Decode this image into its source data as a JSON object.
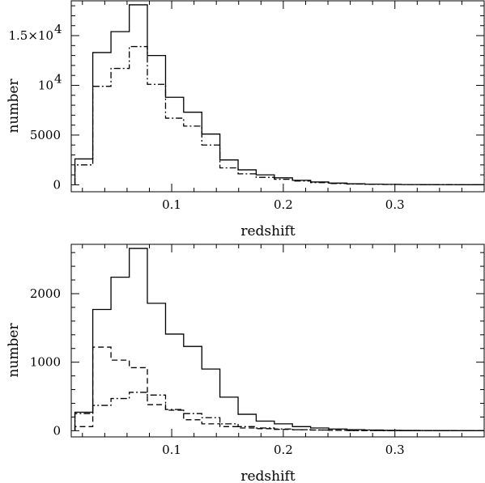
{
  "chart_data": [
    {
      "type": "histogram",
      "xlabel": "redshift",
      "ylabel": "number",
      "xlim": [
        0.01,
        0.38
      ],
      "ylim": [
        -700,
        18500
      ],
      "xticks": [
        {
          "v": 0.1,
          "label": "0.1"
        },
        {
          "v": 0.2,
          "label": "0.2"
        },
        {
          "v": 0.3,
          "label": "0.3"
        }
      ],
      "yticks": [
        {
          "v": 0,
          "label": "0",
          "exp": ""
        },
        {
          "v": 5000,
          "label": "5000",
          "exp": ""
        },
        {
          "v": 10000,
          "label": "10",
          "exp": "4"
        },
        {
          "v": 15000,
          "label": "1.5×10",
          "exp": "4"
        }
      ],
      "bin_edges": [
        0.0133,
        0.0293,
        0.0456,
        0.062,
        0.0782,
        0.0945,
        0.1107,
        0.127,
        0.1432,
        0.1595,
        0.1757,
        0.192,
        0.2082,
        0.2245,
        0.2407,
        0.257,
        0.2732,
        0.2895,
        0.3057,
        0.322,
        0.3382,
        0.3545,
        0.38
      ],
      "series": [
        {
          "style": "solid",
          "values": [
            2600,
            13300,
            15400,
            18100,
            13000,
            8800,
            7300,
            5100,
            2500,
            1500,
            1000,
            700,
            450,
            280,
            170,
            100,
            60,
            40,
            25,
            15,
            10,
            5
          ]
        },
        {
          "style": "dashdot",
          "values": [
            2000,
            9900,
            11700,
            13900,
            10100,
            6700,
            5900,
            4000,
            1700,
            1100,
            750,
            550,
            380,
            220,
            130,
            80,
            50,
            30,
            20,
            12,
            8,
            4
          ]
        }
      ]
    },
    {
      "type": "histogram",
      "xlabel": "redshift",
      "ylabel": "number",
      "xlim": [
        0.01,
        0.38
      ],
      "ylim": [
        -90,
        2720
      ],
      "xticks": [
        {
          "v": 0.1,
          "label": "0.1"
        },
        {
          "v": 0.2,
          "label": "0.2"
        },
        {
          "v": 0.3,
          "label": "0.3"
        }
      ],
      "yticks": [
        {
          "v": 0,
          "label": "0",
          "exp": ""
        },
        {
          "v": 1000,
          "label": "1000",
          "exp": ""
        },
        {
          "v": 2000,
          "label": "2000",
          "exp": ""
        }
      ],
      "bin_edges": [
        0.0133,
        0.0293,
        0.0456,
        0.062,
        0.0782,
        0.0945,
        0.1107,
        0.127,
        0.1432,
        0.1595,
        0.1757,
        0.192,
        0.2082,
        0.2245,
        0.2407,
        0.257,
        0.2732,
        0.2895,
        0.3057,
        0.322,
        0.3382,
        0.3545,
        0.38
      ],
      "series": [
        {
          "style": "solid",
          "values": [
            270,
            1770,
            2240,
            2660,
            1860,
            1410,
            1230,
            900,
            490,
            240,
            140,
            100,
            60,
            40,
            25,
            15,
            10,
            5,
            4,
            3,
            2,
            1
          ]
        },
        {
          "style": "dashed",
          "values": [
            60,
            1220,
            1030,
            920,
            380,
            300,
            160,
            100,
            60,
            40,
            30,
            20,
            15,
            10,
            6,
            4,
            3,
            2,
            1,
            1,
            0,
            0
          ]
        },
        {
          "style": "dashdot",
          "values": [
            250,
            370,
            470,
            560,
            520,
            310,
            250,
            190,
            100,
            60,
            40,
            25,
            15,
            10,
            6,
            4,
            3,
            2,
            1,
            1,
            0,
            0
          ]
        }
      ]
    }
  ]
}
